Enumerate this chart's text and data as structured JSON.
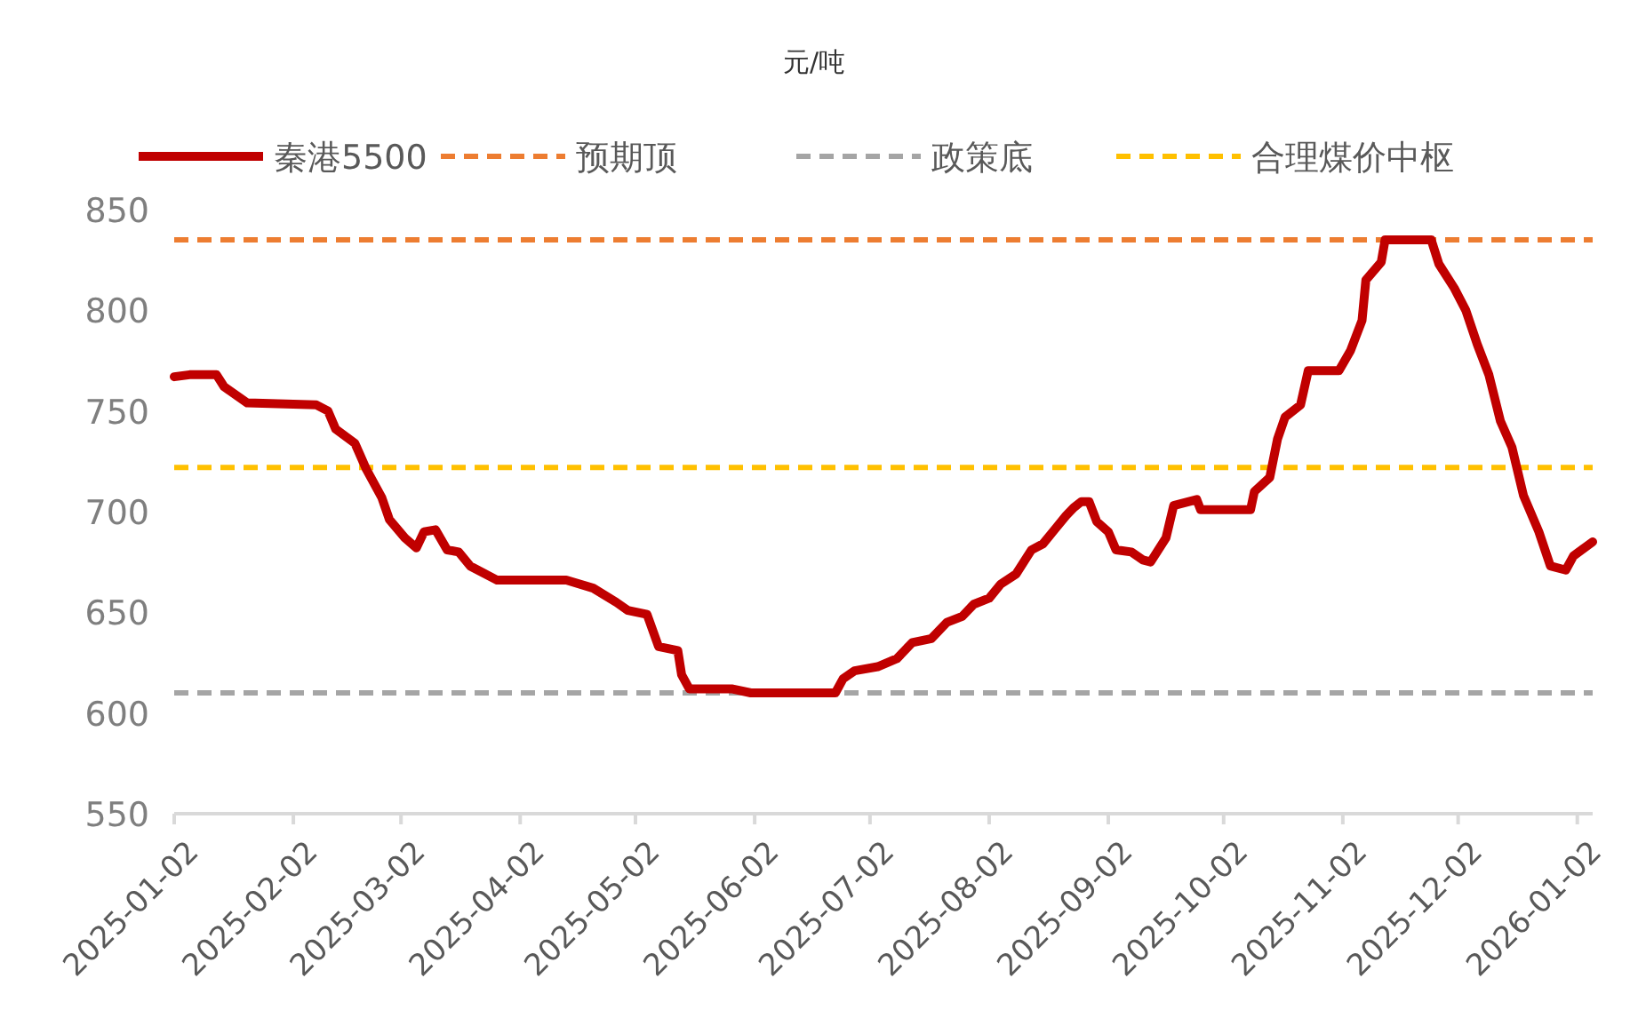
{
  "chart_data": {
    "type": "line",
    "title": "元/吨",
    "x": [
      "2025-01-02",
      "2025-01-06",
      "2025-01-13",
      "2025-01-15",
      "2025-01-21",
      "2025-02-08",
      "2025-02-11",
      "2025-02-13",
      "2025-02-18",
      "2025-02-21",
      "2025-02-25",
      "2025-02-27",
      "2025-03-03",
      "2025-03-06",
      "2025-03-08",
      "2025-03-11",
      "2025-03-14",
      "2025-03-17",
      "2025-03-20",
      "2025-03-27",
      "2025-04-14",
      "2025-04-21",
      "2025-04-27",
      "2025-04-30",
      "2025-05-05",
      "2025-05-08",
      "2025-05-13",
      "2025-05-14",
      "2025-05-16",
      "2025-05-27",
      "2025-06-01",
      "2025-06-23",
      "2025-06-25",
      "2025-06-28",
      "2025-07-04",
      "2025-07-09",
      "2025-07-13",
      "2025-07-18",
      "2025-07-22",
      "2025-07-26",
      "2025-07-29",
      "2025-08-02",
      "2025-08-05",
      "2025-08-09",
      "2025-08-13",
      "2025-08-16",
      "2025-08-19",
      "2025-08-22",
      "2025-08-24",
      "2025-08-26",
      "2025-08-28",
      "2025-08-30",
      "2025-09-02",
      "2025-09-04",
      "2025-09-08",
      "2025-09-11",
      "2025-09-13",
      "2025-09-17",
      "2025-09-19",
      "2025-09-25",
      "2025-09-26",
      "2025-10-09",
      "2025-10-10",
      "2025-10-14",
      "2025-10-16",
      "2025-10-18",
      "2025-10-22",
      "2025-10-24",
      "2025-11-01",
      "2025-11-04",
      "2025-11-07",
      "2025-11-08",
      "2025-11-12",
      "2025-11-13",
      "2025-11-25",
      "2025-11-27",
      "2025-12-01",
      "2025-12-04",
      "2025-12-07",
      "2025-12-10",
      "2025-12-13",
      "2025-12-16",
      "2025-12-19",
      "2025-12-23",
      "2025-12-26",
      "2025-12-30",
      "2026-01-01",
      "2026-01-06"
    ],
    "series": [
      {
        "name": "秦港5500",
        "color": "#c00000",
        "values": [
          767,
          768,
          768,
          762,
          754,
          753,
          750,
          741,
          734,
          721,
          707,
          696,
          687,
          682,
          690,
          691,
          681,
          680,
          673,
          666,
          666,
          662,
          655,
          651,
          649,
          633,
          631,
          619,
          612,
          612,
          610,
          610,
          617,
          621,
          623,
          627,
          635,
          637,
          645,
          648,
          654,
          657,
          664,
          669,
          681,
          684,
          691,
          698,
          702,
          705,
          705,
          695,
          690,
          681,
          680,
          676,
          675,
          687,
          703,
          706,
          701,
          701,
          710,
          717,
          736,
          747,
          753,
          770,
          770,
          780,
          795,
          815,
          824,
          835,
          835,
          823,
          811,
          800,
          783,
          768,
          745,
          732,
          708,
          690,
          673,
          671,
          678,
          685
        ]
      }
    ],
    "ref_lines": [
      {
        "axis": "y",
        "value": 835,
        "label": "预期顶",
        "color": "#ed7d31",
        "line_style": "dashed"
      },
      {
        "axis": "y",
        "value": 610,
        "label": "政策底",
        "color": "#a5a5a5",
        "line_style": "dashed"
      },
      {
        "axis": "y",
        "value": 722,
        "label": "合理煤价中枢",
        "color": "#ffc000",
        "line_style": "dashed"
      }
    ],
    "xlim": [
      "2025-01-02",
      "2026-01-06"
    ],
    "xticks": [
      "2025-01-02",
      "2025-02-02",
      "2025-03-02",
      "2025-04-02",
      "2025-05-02",
      "2025-06-02",
      "2025-07-02",
      "2025-08-02",
      "2025-09-02",
      "2025-10-02",
      "2025-11-02",
      "2025-12-02",
      "2026-01-02"
    ],
    "ylim": [
      550,
      850
    ],
    "yticks": [
      550,
      600,
      650,
      700,
      750,
      800,
      850
    ],
    "grid": false,
    "legend": "top",
    "marker": "none",
    "line_style": "solid"
  }
}
